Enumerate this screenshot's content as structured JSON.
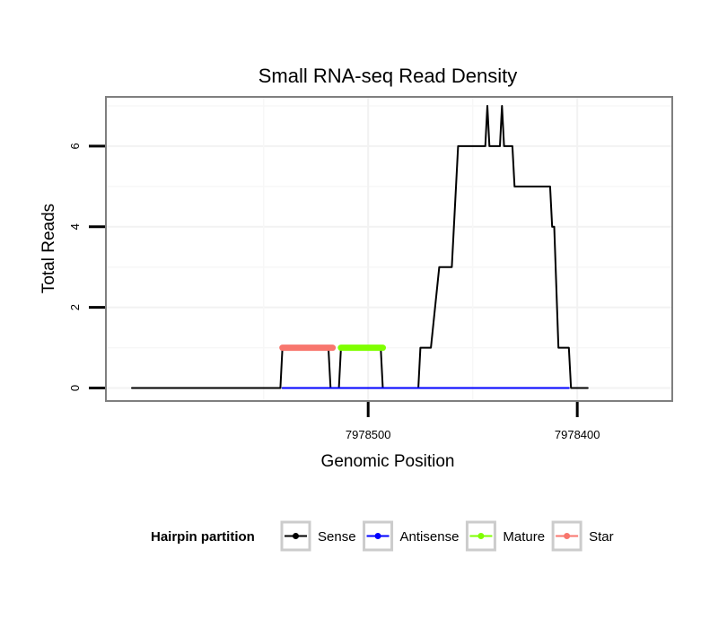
{
  "chart_data": {
    "type": "line",
    "title": "Small RNA-seq Read Density",
    "xlabel": "Genomic Position",
    "ylabel": "Total Reads",
    "x_reversed": true,
    "xlim": [
      7978625,
      7978355
    ],
    "ylim": [
      -0.3,
      7.2
    ],
    "x_ticks": [
      7978500,
      7978400
    ],
    "x_tick_labels": [
      "7978500",
      "7978400"
    ],
    "y_ticks": [
      0,
      2,
      4,
      6
    ],
    "y_tick_labels": [
      "0",
      "2",
      "4",
      "6"
    ],
    "legend_title": "Hairpin partition",
    "legend_position": "bottom",
    "series": [
      {
        "name": "Sense",
        "color": "#000000",
        "width": 2,
        "x": [
          7978613,
          7978542,
          7978541,
          7978519,
          7978518,
          7978514,
          7978513,
          7978494,
          7978493,
          7978476,
          7978475,
          7978470,
          7978466,
          7978460,
          7978457,
          7978451,
          7978444,
          7978443,
          7978442,
          7978441,
          7978437,
          7978436,
          7978435,
          7978431,
          7978430,
          7978429,
          7978422,
          7978413,
          7978412,
          7978411,
          7978409,
          7978404,
          7978403,
          7978395
        ],
        "y": [
          0,
          0,
          1,
          1,
          0,
          0,
          1,
          1,
          0,
          0,
          1,
          1,
          3,
          3,
          6,
          6,
          6,
          7,
          6,
          6,
          6,
          7,
          6,
          6,
          5,
          5,
          5,
          5,
          4,
          4,
          1,
          1,
          0,
          0
        ]
      },
      {
        "name": "Antisense",
        "color": "#0000ff",
        "width": 2,
        "x": [
          7978541,
          7978404
        ],
        "y": [
          0,
          0
        ]
      },
      {
        "name": "Mature",
        "color": "#7fff00",
        "width": 7,
        "x": [
          7978513,
          7978493
        ],
        "y": [
          1,
          1
        ]
      },
      {
        "name": "Star",
        "color": "#f8766d",
        "width": 7,
        "x": [
          7978541,
          7978517
        ],
        "y": [
          1,
          1
        ]
      }
    ]
  }
}
